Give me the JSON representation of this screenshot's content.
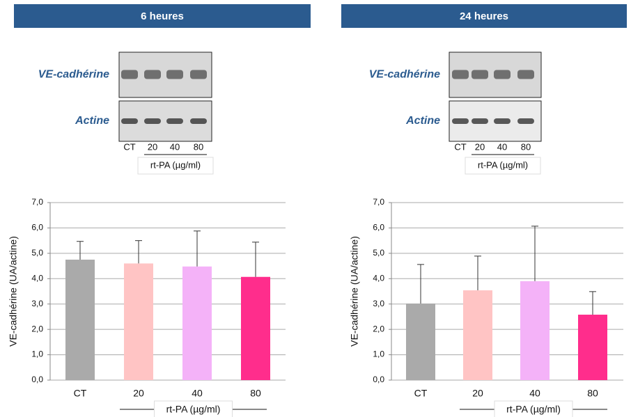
{
  "chart_data": [
    {
      "type": "bar",
      "title": "6 heures",
      "blot": {
        "rows": [
          "VE-cadhérine",
          "Actine"
        ],
        "lanes": [
          "CT",
          "20",
          "40",
          "80"
        ],
        "treatment": "rt-PA (µg/ml)"
      },
      "categories": [
        "CT",
        "20",
        "40",
        "80"
      ],
      "values": [
        4.75,
        4.6,
        4.48,
        4.07
      ],
      "errors": [
        0.72,
        0.9,
        1.4,
        1.37
      ],
      "colors": [
        "#aaaaaa",
        "#ffc4c4",
        "#f4b2f8",
        "#ff2d8c"
      ],
      "y_label": "VE-cadhérine (UA/actine)",
      "x_label": "rt-PA (µg/ml)",
      "ylim": [
        0,
        7
      ],
      "yticks": [
        {
          "value": 0,
          "label": "0,0"
        },
        {
          "value": 1,
          "label": "1,0"
        },
        {
          "value": 2,
          "label": "2,0"
        },
        {
          "value": 3,
          "label": "3,0"
        },
        {
          "value": 4,
          "label": "4,0"
        },
        {
          "value": 5,
          "label": "5,0"
        },
        {
          "value": 6,
          "label": "6,0"
        },
        {
          "value": 7,
          "label": "7,0"
        }
      ],
      "grid": true
    },
    {
      "type": "bar",
      "title": "24 heures",
      "blot": {
        "rows": [
          "VE-cadhérine",
          "Actine"
        ],
        "lanes": [
          "CT",
          "20",
          "40",
          "80"
        ],
        "treatment": "rt-PA (µg/ml)"
      },
      "categories": [
        "CT",
        "20",
        "40",
        "80"
      ],
      "values": [
        3.02,
        3.54,
        3.9,
        2.58
      ],
      "errors": [
        1.54,
        1.35,
        2.17,
        0.91
      ],
      "colors": [
        "#aaaaaa",
        "#ffc4c4",
        "#f4b2f8",
        "#ff2d8c"
      ],
      "y_label": "VE-cadhérine (UA/actine)",
      "x_label": "rt-PA (µg/ml)",
      "ylim": [
        0,
        7
      ],
      "yticks": [
        {
          "value": 0,
          "label": "0,0"
        },
        {
          "value": 1,
          "label": "1,0"
        },
        {
          "value": 2,
          "label": "2,0"
        },
        {
          "value": 3,
          "label": "3,0"
        },
        {
          "value": 4,
          "label": "4,0"
        },
        {
          "value": 5,
          "label": "5,0"
        },
        {
          "value": 6,
          "label": "6,0"
        },
        {
          "value": 7,
          "label": "7,0"
        }
      ],
      "grid": true
    }
  ]
}
